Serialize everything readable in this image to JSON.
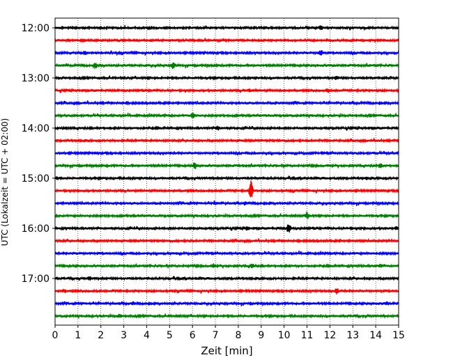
{
  "chart_data": {
    "type": "line",
    "title": "",
    "xlabel": "Zeit  [min]",
    "ylabel": "UTC (Lokalzeit = UTC + 02:00)",
    "xlim": [
      0,
      15
    ],
    "x_ticks": [
      "0",
      "1",
      "2",
      "3",
      "4",
      "5",
      "6",
      "7",
      "8",
      "9",
      "10",
      "11",
      "12",
      "13",
      "14",
      "15"
    ],
    "y_ticks": [
      "12:00",
      "13:00",
      "14:00",
      "15:00",
      "16:00",
      "17:00"
    ],
    "grid": "vertical dotted",
    "trace_interval_minutes": 15,
    "trace_colors": [
      "#000000",
      "#ff0000",
      "#0000ff",
      "#008000"
    ],
    "series": [
      {
        "start": "12:00",
        "color": "#000000",
        "events": [
          {
            "t": 11.6,
            "amp": 0.3
          }
        ]
      },
      {
        "start": "12:15",
        "color": "#ff0000",
        "events": []
      },
      {
        "start": "12:30",
        "color": "#0000ff",
        "events": [
          {
            "t": 11.6,
            "amp": 0.45
          },
          {
            "t": 1.3,
            "amp": 0.25
          }
        ]
      },
      {
        "start": "12:45",
        "color": "#008000",
        "events": [
          {
            "t": 1.75,
            "amp": 0.55
          },
          {
            "t": 5.15,
            "amp": 0.6
          }
        ]
      },
      {
        "start": "13:00",
        "color": "#000000",
        "events": [
          {
            "t": 12.3,
            "amp": 0.25
          }
        ]
      },
      {
        "start": "13:15",
        "color": "#ff0000",
        "events": [
          {
            "t": 11.9,
            "amp": 0.35
          },
          {
            "t": 8.5,
            "amp": 0.2
          }
        ]
      },
      {
        "start": "13:30",
        "color": "#0000ff",
        "events": []
      },
      {
        "start": "13:45",
        "color": "#008000",
        "events": [
          {
            "t": 6.0,
            "amp": 0.45
          }
        ]
      },
      {
        "start": "14:00",
        "color": "#000000",
        "events": [
          {
            "t": 7.1,
            "amp": 0.3
          }
        ]
      },
      {
        "start": "14:15",
        "color": "#ff0000",
        "events": []
      },
      {
        "start": "14:30",
        "color": "#0000ff",
        "events": []
      },
      {
        "start": "14:45",
        "color": "#008000",
        "events": [
          {
            "t": 6.1,
            "amp": 0.55
          },
          {
            "t": 14.2,
            "amp": 0.35
          }
        ]
      },
      {
        "start": "15:00",
        "color": "#000000",
        "events": [
          {
            "t": 13.6,
            "amp": 0.3
          }
        ]
      },
      {
        "start": "15:15",
        "color": "#ff0000",
        "events": [
          {
            "t": 8.55,
            "amp": 1.9
          }
        ]
      },
      {
        "start": "15:30",
        "color": "#0000ff",
        "events": [
          {
            "t": 8.3,
            "amp": 0.25
          },
          {
            "t": 7.0,
            "amp": 0.2
          }
        ]
      },
      {
        "start": "15:45",
        "color": "#008000",
        "events": [
          {
            "t": 11.0,
            "amp": 0.5
          }
        ]
      },
      {
        "start": "16:00",
        "color": "#000000",
        "events": [
          {
            "t": 10.2,
            "amp": 0.9
          },
          {
            "t": 8.4,
            "amp": 0.3
          },
          {
            "t": 14.9,
            "amp": 0.25
          }
        ]
      },
      {
        "start": "16:15",
        "color": "#ff0000",
        "events": []
      },
      {
        "start": "16:30",
        "color": "#0000ff",
        "events": []
      },
      {
        "start": "16:45",
        "color": "#008000",
        "events": [
          {
            "t": 6.9,
            "amp": 0.3
          },
          {
            "t": 8.6,
            "amp": 0.3
          },
          {
            "t": 14.2,
            "amp": 0.25
          }
        ]
      },
      {
        "start": "17:00",
        "color": "#000000",
        "events": [
          {
            "t": 1.5,
            "amp": 0.3
          }
        ]
      },
      {
        "start": "17:15",
        "color": "#ff0000",
        "events": [
          {
            "t": 12.3,
            "amp": 0.4
          },
          {
            "t": 0.4,
            "amp": 0.25
          }
        ]
      },
      {
        "start": "17:30",
        "color": "#0000ff",
        "events": [
          {
            "t": 3.4,
            "amp": 0.2
          },
          {
            "t": 14.5,
            "amp": 0.2
          }
        ]
      },
      {
        "start": "17:45",
        "color": "#008000",
        "events": [
          {
            "t": 2.8,
            "amp": 0.25
          }
        ]
      }
    ]
  }
}
